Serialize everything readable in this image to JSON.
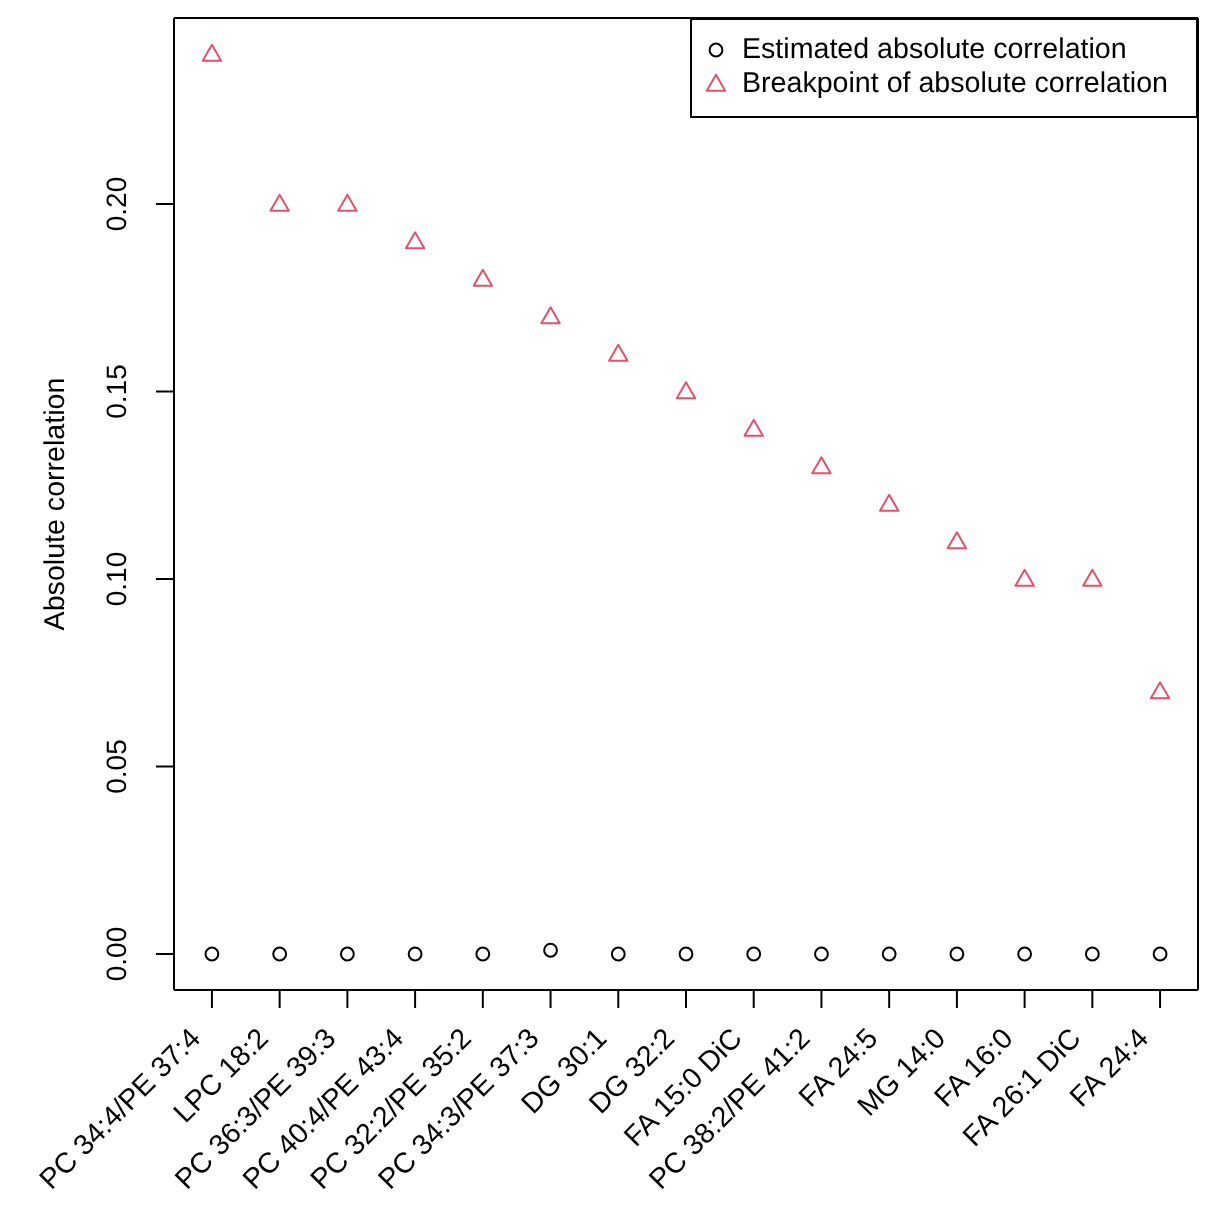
{
  "chart_data": {
    "type": "scatter",
    "ylabel": "Absolute correlation",
    "categories": [
      "PC 34:4/PE 37:4",
      "LPC 18:2",
      "PC 36:3/PE 39:3",
      "PC 40:4/PE 43:4",
      "PC 32:2/PE 35:2",
      "PC 34:3/PE 37:3",
      "DG 30:1",
      "DG 32:2",
      "FA 15:0 DiC",
      "PC 38:2/PE 41:2",
      "FA 24:5",
      "MG 14:0",
      "FA 16:0",
      "FA 26:1 DiC",
      "FA 24:4"
    ],
    "series": [
      {
        "name": "Estimated absolute correlation",
        "color": "#000000",
        "marker": "circle",
        "values": [
          0,
          0,
          0,
          0,
          0,
          0.001,
          0,
          0,
          0,
          0,
          0,
          0,
          0,
          0,
          0
        ]
      },
      {
        "name": "Breakpoint of absolute correlation",
        "color": "#df536b",
        "marker": "triangle",
        "values": [
          0.24,
          0.2,
          0.2,
          0.19,
          0.18,
          0.17,
          0.16,
          0.15,
          0.14,
          0.13,
          0.12,
          0.11,
          0.1,
          0.1,
          0.07
        ]
      }
    ],
    "ylim": [
      -0.0096,
      0.2496
    ],
    "yticks": [
      {
        "value": 0,
        "label": "0.00"
      },
      {
        "value": 0.05,
        "label": "0.05"
      },
      {
        "value": 0.1,
        "label": "0.10"
      },
      {
        "value": 0.15,
        "label": "0.15"
      },
      {
        "value": 0.2,
        "label": "0.20"
      }
    ],
    "legend": "top right"
  }
}
